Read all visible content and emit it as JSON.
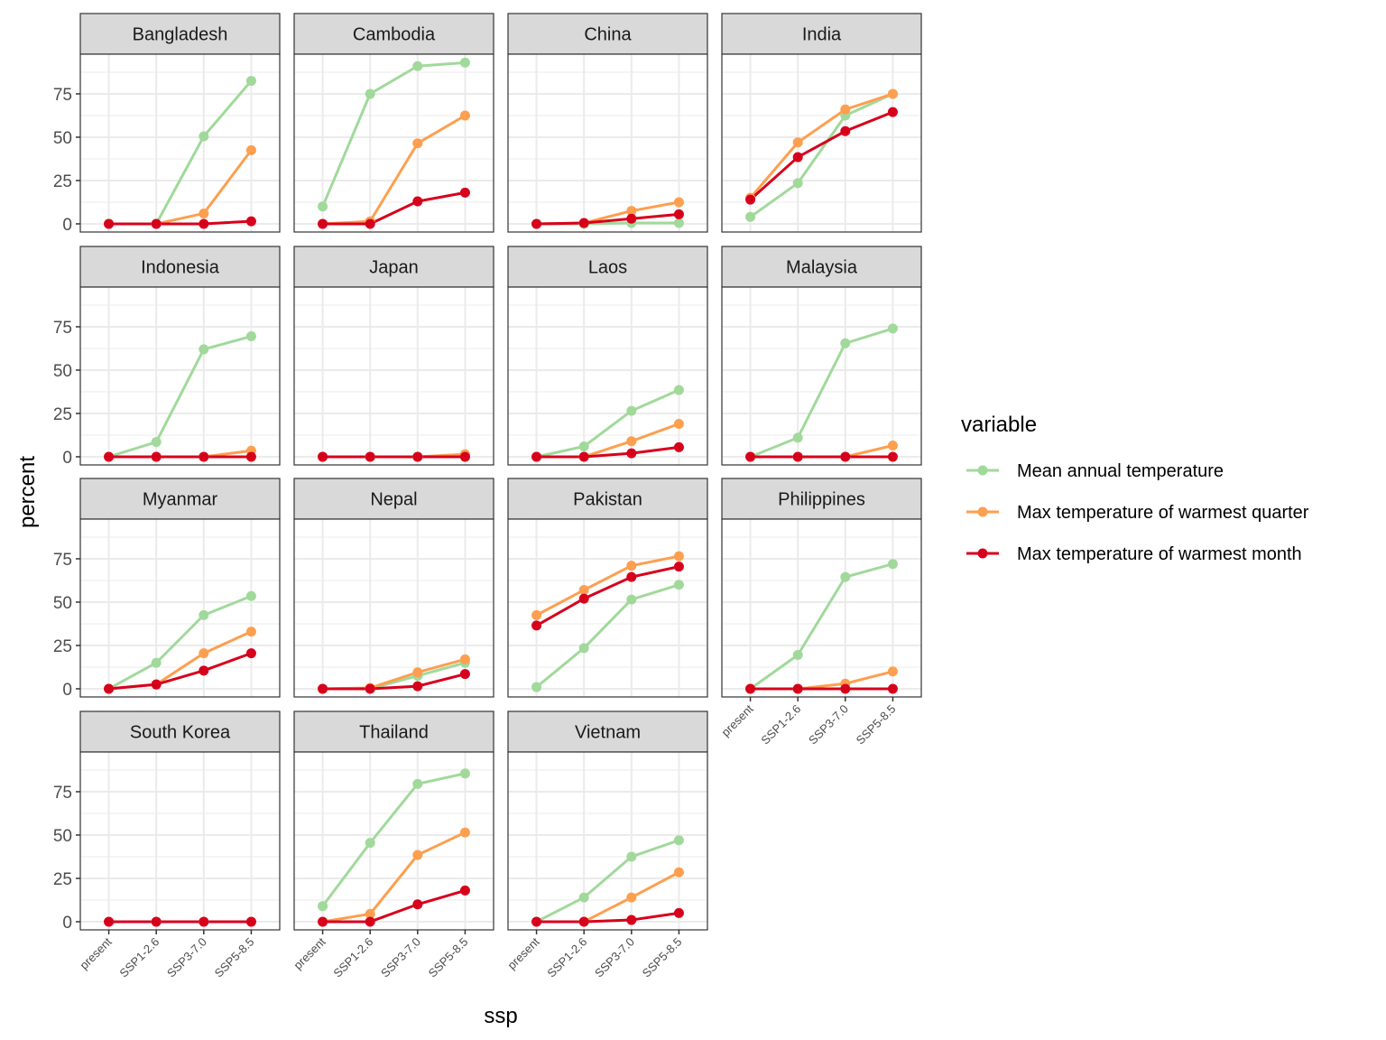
{
  "chart_data": {
    "type": "line",
    "facet": "country",
    "xlabel": "ssp",
    "ylabel": "percent",
    "categories": [
      "present",
      "SSP1-2.6",
      "SSP3-7.0",
      "SSP5-8.5"
    ],
    "yticks": [
      0,
      25,
      50,
      75
    ],
    "ylim": [
      -4.7,
      97.9
    ],
    "grid": true,
    "legend": {
      "title": "variable",
      "placement": "right",
      "entries": [
        {
          "name": "Mean annual temperature",
          "color": "#a1d99b"
        },
        {
          "name": "Max temperature of warmest quarter",
          "color": "#fd9f4f"
        },
        {
          "name": "Max temperature of warmest month",
          "color": "#d7001c"
        }
      ]
    },
    "panels": [
      {
        "name": "Bangladesh",
        "series": [
          [
            0,
            0,
            50.5,
            82.5
          ],
          [
            0,
            0,
            6,
            42.5
          ],
          [
            0,
            0,
            0,
            1.5
          ]
        ]
      },
      {
        "name": "Cambodia",
        "series": [
          [
            10,
            75,
            91,
            93
          ],
          [
            0,
            1.5,
            46.5,
            62.5
          ],
          [
            0,
            0,
            13,
            18
          ]
        ]
      },
      {
        "name": "China",
        "series": [
          [
            0,
            0,
            0.5,
            0.5
          ],
          [
            0,
            0.5,
            7.5,
            12.5
          ],
          [
            0,
            0.5,
            3,
            5.5
          ]
        ]
      },
      {
        "name": "India",
        "series": [
          [
            4,
            23.5,
            62.5,
            75
          ],
          [
            15,
            47,
            66,
            75
          ],
          [
            14,
            38.5,
            53.5,
            64.5
          ]
        ]
      },
      {
        "name": "Indonesia",
        "series": [
          [
            0,
            8.5,
            62,
            69.5
          ],
          [
            0,
            0,
            0,
            3.5
          ],
          [
            0,
            0,
            0,
            0
          ]
        ]
      },
      {
        "name": "Japan",
        "series": [
          [
            0,
            0,
            0,
            0
          ],
          [
            0,
            0,
            0,
            1.5
          ],
          [
            0,
            0,
            0,
            0
          ]
        ]
      },
      {
        "name": "Laos",
        "series": [
          [
            0,
            6,
            26.5,
            38.5
          ],
          [
            0,
            0,
            9,
            19
          ],
          [
            0,
            0,
            2,
            5.5
          ]
        ]
      },
      {
        "name": "Malaysia",
        "series": [
          [
            0,
            11,
            65.5,
            74
          ],
          [
            0,
            0,
            0,
            6.5
          ],
          [
            0,
            0,
            0,
            0
          ]
        ]
      },
      {
        "name": "Myanmar",
        "series": [
          [
            0,
            15,
            42.5,
            53.5
          ],
          [
            0,
            2.5,
            20.5,
            33
          ],
          [
            0,
            2.5,
            10.5,
            20.5
          ]
        ]
      },
      {
        "name": "Nepal",
        "series": [
          [
            0,
            0,
            7.5,
            15
          ],
          [
            0,
            0.5,
            9.5,
            17
          ],
          [
            0,
            0,
            1.5,
            8.5
          ]
        ]
      },
      {
        "name": "Pakistan",
        "series": [
          [
            1,
            23.5,
            51.5,
            60
          ],
          [
            42.5,
            57,
            71,
            76.5
          ],
          [
            36.5,
            52,
            64.5,
            70.5
          ]
        ]
      },
      {
        "name": "Philippines",
        "series": [
          [
            0,
            19.5,
            64.5,
            72
          ],
          [
            0,
            0,
            3,
            10
          ],
          [
            0,
            0,
            0,
            0
          ]
        ]
      },
      {
        "name": "South Korea",
        "series": [
          [
            0,
            0,
            0,
            0
          ],
          [
            0,
            0,
            0,
            0
          ],
          [
            0,
            0,
            0,
            0
          ]
        ]
      },
      {
        "name": "Thailand",
        "series": [
          [
            9,
            45.5,
            79.5,
            85.5
          ],
          [
            0,
            4.5,
            38.5,
            51.5
          ],
          [
            0,
            0,
            10,
            18
          ]
        ]
      },
      {
        "name": "Vietnam",
        "series": [
          [
            0,
            14,
            37.5,
            47
          ],
          [
            0,
            0,
            14,
            28.5
          ],
          [
            0,
            0,
            1,
            5
          ]
        ]
      }
    ]
  }
}
